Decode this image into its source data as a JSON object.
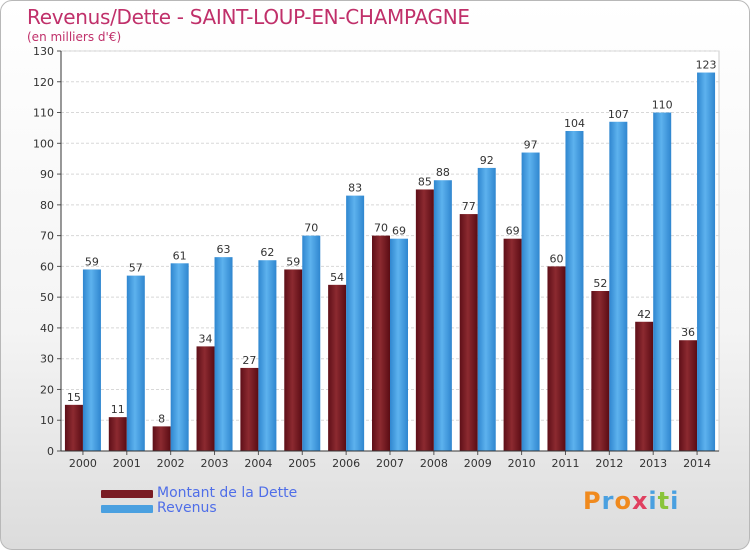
{
  "title": "Revenus/Dette - SAINT-LOUP-EN-CHAMPAGNE",
  "subtitle": "(en milliers d'€)",
  "legend": [
    {
      "label": "Montant de la Dette",
      "color": "#7a1c24"
    },
    {
      "label": "Revenus",
      "color": "#4aa0e0"
    }
  ],
  "logo": {
    "text": "Proxiti",
    "colors": [
      "#f08a1e",
      "#4aa0e0",
      "#f08a1e",
      "#e04060",
      "#4aa0e0",
      "#8ac43a",
      "#4aa0e0"
    ]
  },
  "chart_data": {
    "type": "bar",
    "title": "Revenus/Dette - SAINT-LOUP-EN-CHAMPAGNE",
    "ylabel": "(en milliers d'€)",
    "categories": [
      "2000",
      "2001",
      "2002",
      "2003",
      "2004",
      "2005",
      "2006",
      "2007",
      "2008",
      "2009",
      "2010",
      "2011",
      "2012",
      "2013",
      "2014"
    ],
    "series": [
      {
        "name": "Montant de la Dette",
        "color": "#7a1c24",
        "values": [
          15,
          11,
          8,
          34,
          27,
          59,
          54,
          70,
          85,
          77,
          69,
          60,
          52,
          42,
          36
        ]
      },
      {
        "name": "Revenus",
        "color": "#4aa0e0",
        "values": [
          59,
          57,
          61,
          63,
          62,
          70,
          83,
          69,
          88,
          92,
          97,
          104,
          107,
          110,
          123
        ]
      }
    ],
    "ylim": [
      0,
      130
    ],
    "yticks": [
      0,
      10,
      20,
      30,
      40,
      50,
      60,
      70,
      80,
      90,
      100,
      110,
      120,
      130
    ],
    "grid": true,
    "legend_position": "bottom-left"
  }
}
